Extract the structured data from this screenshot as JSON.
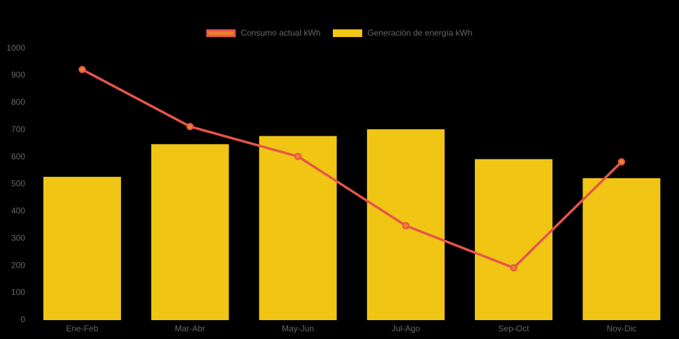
{
  "page": {
    "background_color": "#000000",
    "axis_text_color": "#666666"
  },
  "legend": {
    "position": "top-center",
    "items": [
      {
        "label": "Consumo actual kWh",
        "swatch_fill": "#EB802E",
        "swatch_border": "#E8544A"
      },
      {
        "label": "Generación de energía kWh",
        "swatch_fill": "#F0C514",
        "swatch_border": "#F0C514"
      }
    ]
  },
  "chart_data": {
    "type": "bar",
    "subtype": "bar-with-line-overlay",
    "title": "",
    "xlabel": "",
    "ylabel": "",
    "categories": [
      "Ene-Feb",
      "Mar-Abr",
      "May-Jun",
      "Jul-Ago",
      "Sep-Oct",
      "Nov-Dic"
    ],
    "series": [
      {
        "name": "Consumo actual kWh",
        "type": "line",
        "values": [
          920,
          710,
          600,
          345,
          190,
          580
        ],
        "color": "#E8544A",
        "point_color": "#EB802E",
        "point_style": "circle"
      },
      {
        "name": "Generación de energía kWh",
        "type": "bar",
        "values": [
          525,
          645,
          675,
          700,
          590,
          520
        ],
        "color": "#F0C514"
      }
    ],
    "ylim": [
      0,
      1000
    ],
    "ytick_step": 100,
    "ytick_labels": [
      "0",
      "100",
      "200",
      "300",
      "400",
      "500",
      "600",
      "700",
      "800",
      "900",
      "1000"
    ],
    "grid": false,
    "legend_position": "top"
  }
}
